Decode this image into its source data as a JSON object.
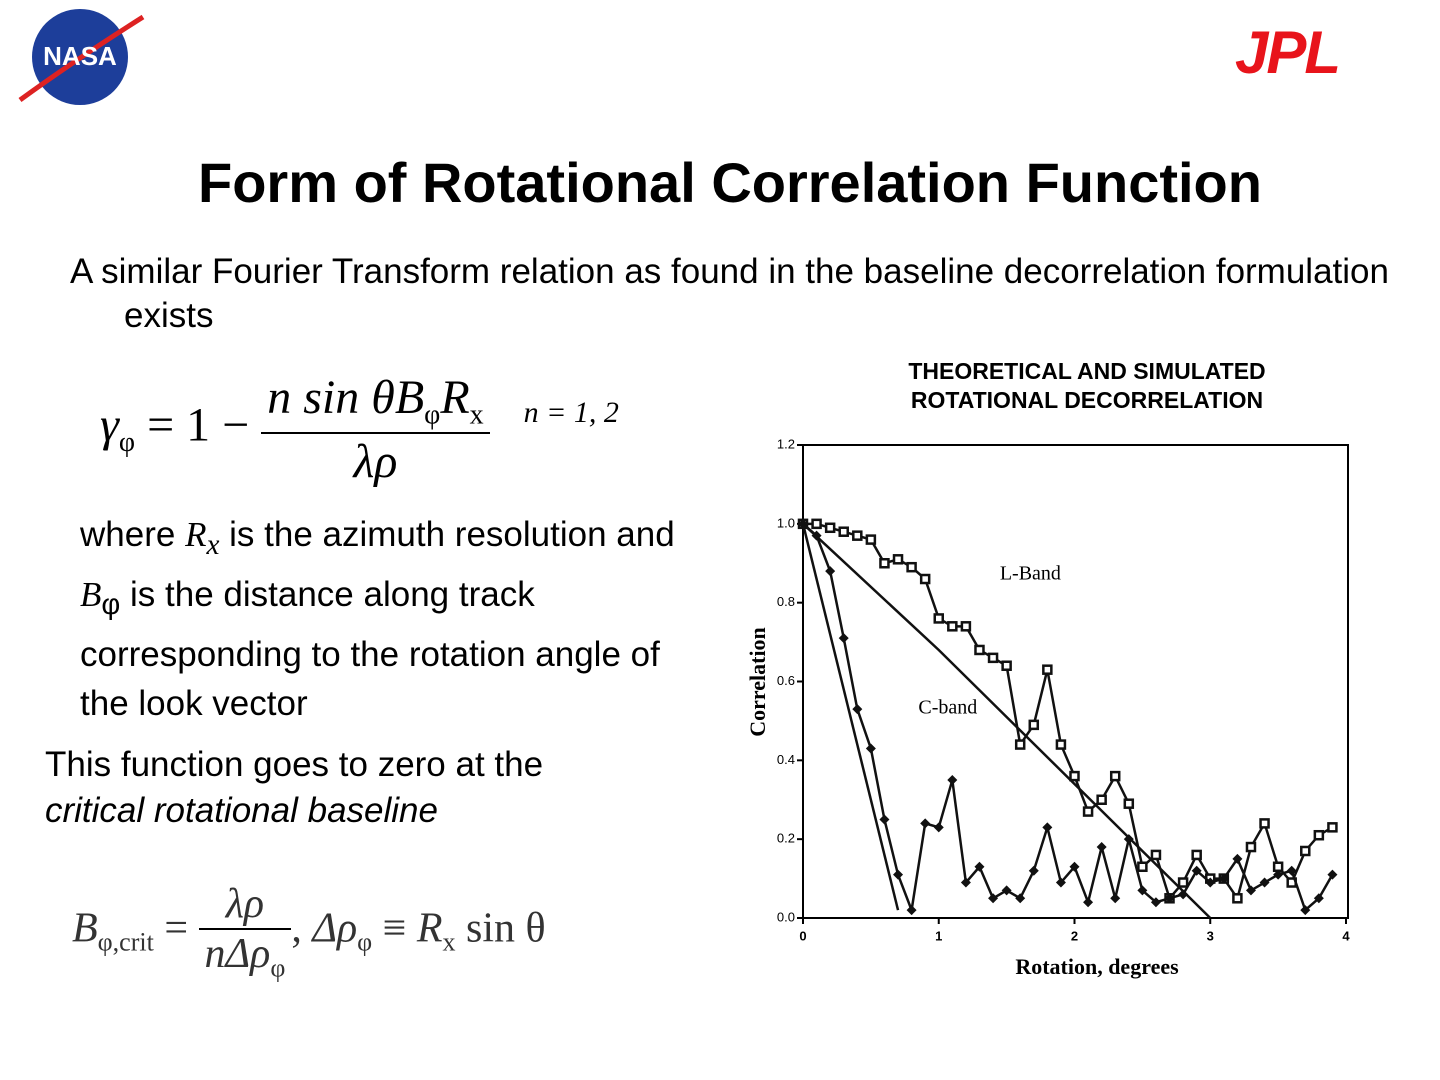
{
  "logos": {
    "left": "NASA",
    "right": "JPL"
  },
  "title": "Form of Rotational Correlation Function",
  "intro": "A similar Fourier Transform relation as found in the baseline decorrelation formulation exists",
  "equation1": {
    "lhs": "γ",
    "lhs_sub": "φ",
    "op": "= 1 −",
    "num": "n sin θB",
    "num_sub1": "φ",
    "num_var": "R",
    "num_sub2": "x",
    "den": "λρ",
    "cond": "n = 1, 2"
  },
  "where": {
    "pre": "where ",
    "var1": "R",
    "sub1": "x",
    "mid": " is the azimuth resolution and ",
    "var2": "B",
    "sub2": "φ",
    "post": " is the distance along track corresponding to the rotation angle of the look vector"
  },
  "zero_note": {
    "text": "This function goes to zero at the",
    "emphasis": "critical rotational baseline"
  },
  "equation2": {
    "lhs": "B",
    "lhs_sub": "φ,crit",
    "op": "=",
    "num": "λρ",
    "den": "nΔρ",
    "den_sub": "φ",
    "sep": ",",
    "rhs_lhs": "Δρ",
    "rhs_sub": "φ",
    "equiv": "≡",
    "rhs_var": "R",
    "rhs_var_sub": "x",
    "rhs_tail": "sin θ"
  },
  "chart_data": {
    "type": "line",
    "title": [
      "THEORETICAL AND SIMULATED",
      "ROTATIONAL DECORRELATION"
    ],
    "xlabel": "Rotation, degrees",
    "ylabel": "Correlation",
    "xlim": [
      0,
      4
    ],
    "ylim": [
      0,
      1.2
    ],
    "xticks": [
      0,
      1,
      2,
      3,
      4
    ],
    "yticks": [
      {
        "value": 0,
        "label": "0.0"
      },
      0.2,
      0.4,
      0.6,
      0.8,
      {
        "value": 1,
        "label": "1.0"
      },
      1.2
    ],
    "annotations": [
      {
        "text": "L-Band",
        "x": 1.45,
        "y": 0.87
      },
      {
        "text": "C-band",
        "x": 0.85,
        "y": 0.53
      }
    ],
    "series": [
      {
        "color": "#111111",
        "marker": "square",
        "x": [
          0,
          0.1,
          0.2,
          0.3,
          0.4,
          0.5,
          0.6,
          0.7,
          0.8,
          0.9,
          1,
          1.1,
          1.2,
          1.3,
          1.4,
          1.5,
          1.6,
          1.7,
          1.8,
          1.9,
          2,
          2.1,
          2.2,
          2.3,
          2.4,
          2.5,
          2.6,
          2.7,
          2.8,
          2.9,
          3,
          3.1,
          3.2,
          3.3,
          3.4,
          3.5,
          3.6,
          3.7,
          3.8,
          3.9
        ],
        "values": [
          1.0,
          1.0,
          0.99,
          0.98,
          0.97,
          0.96,
          0.9,
          0.91,
          0.89,
          0.86,
          0.76,
          0.74,
          0.74,
          0.68,
          0.66,
          0.64,
          0.44,
          0.49,
          0.63,
          0.44,
          0.36,
          0.27,
          0.3,
          0.36,
          0.29,
          0.13,
          0.16,
          0.05,
          0.09,
          0.16,
          0.1,
          0.1,
          0.05,
          0.18,
          0.24,
          0.13,
          0.09,
          0.17,
          0.21,
          0.23
        ]
      },
      {
        "color": "#111111",
        "marker": "diamond",
        "x": [
          0,
          0.1,
          0.2,
          0.3,
          0.4,
          0.5,
          0.6,
          0.7,
          0.8,
          0.9,
          1,
          1.1,
          1.2,
          1.3,
          1.4,
          1.5,
          1.6,
          1.7,
          1.8,
          1.9,
          2,
          2.1,
          2.2,
          2.3,
          2.4,
          2.5,
          2.6,
          2.7,
          2.8,
          2.9,
          3,
          3.1,
          3.2,
          3.3,
          3.4,
          3.5,
          3.6,
          3.7,
          3.8,
          3.9
        ],
        "values": [
          1.0,
          0.97,
          0.88,
          0.71,
          0.53,
          0.43,
          0.25,
          0.11,
          0.02,
          0.24,
          0.23,
          0.35,
          0.09,
          0.13,
          0.05,
          0.07,
          0.05,
          0.12,
          0.23,
          0.09,
          0.13,
          0.04,
          0.18,
          0.05,
          0.2,
          0.07,
          0.04,
          0.05,
          0.06,
          0.12,
          0.09,
          0.1,
          0.15,
          0.07,
          0.09,
          0.11,
          0.12,
          0.02,
          0.05,
          0.11
        ]
      },
      {
        "color": "#111111",
        "marker": "none",
        "x": [
          0,
          1,
          3
        ],
        "values": [
          1.0,
          0.68,
          0.0
        ]
      },
      {
        "color": "#111111",
        "marker": "none",
        "x": [
          0,
          0.7
        ],
        "values": [
          1.0,
          0.02
        ]
      }
    ]
  }
}
